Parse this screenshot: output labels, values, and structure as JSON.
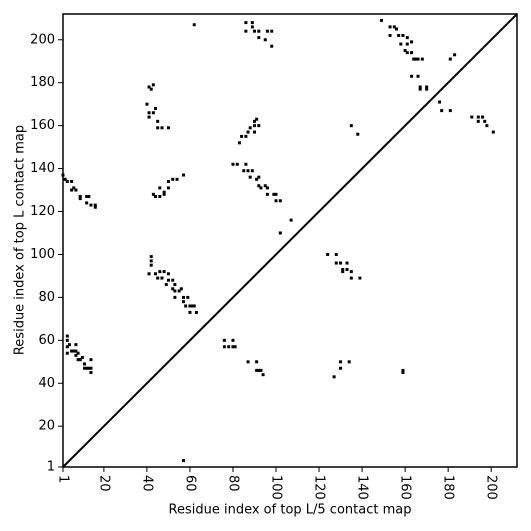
{
  "chart_data": {
    "type": "scatter",
    "x_label": "Residue index of top L/5 contact map",
    "y_label": "Residue index of top L contact map",
    "color": "#000000",
    "xlim": [
      1,
      212
    ],
    "ylim": [
      1,
      212
    ],
    "xticks": [
      1,
      20,
      40,
      60,
      80,
      100,
      120,
      140,
      160,
      180,
      200
    ],
    "yticks": [
      1,
      20,
      40,
      60,
      80,
      100,
      120,
      140,
      160,
      180,
      200
    ],
    "diagonal": true,
    "x": [
      3,
      3,
      4,
      3,
      5,
      3,
      7,
      7,
      8,
      9,
      10,
      11,
      12,
      13,
      14,
      14,
      14,
      11,
      6,
      7,
      8,
      1,
      2,
      3,
      5,
      6,
      5,
      7,
      9,
      12,
      13,
      12,
      14,
      16,
      16,
      9,
      42,
      42,
      42,
      41,
      44,
      46,
      47,
      48,
      50,
      50,
      52,
      53,
      52,
      53,
      55,
      56,
      53,
      57,
      57,
      59,
      58,
      60,
      61,
      60,
      62,
      63,
      45,
      49,
      43,
      44,
      46,
      46,
      48,
      50,
      50,
      52,
      54,
      57,
      48,
      41,
      43,
      42,
      40,
      41,
      43,
      41,
      45,
      45,
      47,
      50,
      44,
      62,
      76,
      76,
      78,
      80,
      80,
      81,
      80,
      82,
      84,
      83,
      86,
      86,
      87,
      88,
      87,
      90,
      91,
      90,
      92,
      90,
      88,
      89,
      91,
      92,
      93,
      92,
      95,
      96,
      96,
      99,
      100,
      100,
      102,
      102,
      107,
      85,
      86,
      89,
      86,
      90,
      92,
      92,
      95,
      96,
      98,
      98,
      89,
      124,
      128,
      128,
      130,
      131,
      133,
      133,
      135,
      135,
      139,
      131,
      135,
      138,
      149,
      153,
      155,
      153,
      157,
      159,
      158,
      161,
      161,
      163,
      160,
      161,
      163,
      164,
      165,
      166,
      168,
      163,
      166,
      167,
      167,
      170,
      170,
      176,
      177,
      181,
      181,
      183,
      191,
      194,
      196,
      194,
      197,
      198,
      201,
      156,
      57,
      87,
      91,
      91,
      92,
      93,
      94,
      127,
      130,
      130,
      134,
      159,
      159
    ],
    "values": [
      62,
      60,
      58,
      57,
      55,
      54,
      58,
      55,
      54,
      51,
      52,
      49,
      47,
      47,
      51,
      47,
      45,
      47,
      55,
      53,
      51,
      137,
      135,
      134,
      134,
      131,
      130,
      130,
      127,
      127,
      127,
      124,
      123,
      123,
      122,
      126,
      99,
      97,
      95,
      91,
      91,
      92,
      89,
      92,
      91,
      88,
      88,
      86,
      84,
      83,
      83,
      84,
      80,
      80,
      78,
      80,
      76,
      76,
      76,
      73,
      76,
      73,
      89,
      86,
      128,
      127,
      127,
      131,
      129,
      131,
      134,
      135,
      135,
      137,
      128,
      178,
      179,
      177,
      170,
      166,
      166,
      164,
      162,
      159,
      159,
      159,
      168,
      207,
      60,
      57,
      57,
      60,
      57,
      57,
      142,
      142,
      155,
      152,
      155,
      142,
      139,
      159,
      157,
      162,
      163,
      160,
      160,
      157,
      136,
      139,
      135,
      136,
      131,
      132,
      132,
      131,
      128,
      128,
      128,
      125,
      125,
      110,
      116,
      139,
      208,
      208,
      204,
      204,
      204,
      201,
      200,
      204,
      204,
      197,
      206,
      100,
      100,
      96,
      96,
      93,
      96,
      93,
      92,
      89,
      89,
      92,
      160,
      156,
      209,
      206,
      206,
      202,
      202,
      202,
      198,
      201,
      198,
      199,
      195,
      194,
      194,
      191,
      191,
      191,
      191,
      183,
      183,
      178,
      177,
      178,
      177,
      171,
      167,
      167,
      191,
      193,
      164,
      164,
      164,
      162,
      162,
      160,
      157,
      205,
      4,
      50,
      50,
      46,
      46,
      46,
      44,
      43,
      47,
      50,
      50,
      46,
      45
    ]
  }
}
